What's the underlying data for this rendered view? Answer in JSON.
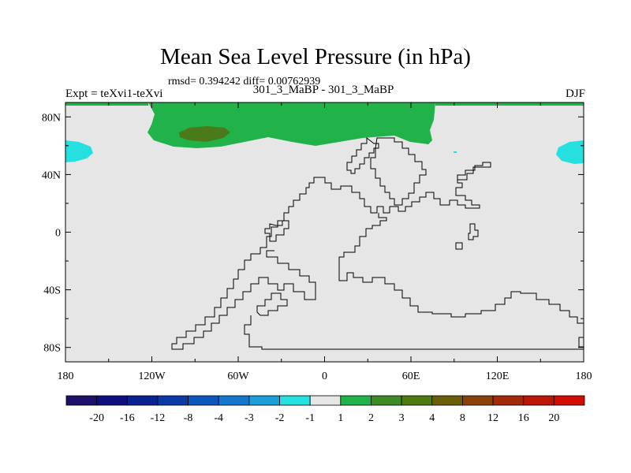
{
  "title": "Mean Sea Level Pressure (in hPa)",
  "stats": "rmsd= 0.394242 diff= 0.00762939",
  "left_string": "Expt = teXvi1-teXvi",
  "center_string": "301_3_MaBP - 301_3_MaBP",
  "right_string": "DJF",
  "axes": {
    "lat_labels": [
      "80N",
      "40N",
      "0",
      "40S",
      "80S"
    ],
    "lon_labels": [
      "180",
      "120W",
      "60W",
      "0",
      "60E",
      "120E",
      "180"
    ]
  },
  "colorbar": {
    "labels": [
      "-20",
      "-16",
      "-12",
      "-8",
      "-4",
      "-3",
      "-2",
      "-1",
      "1",
      "2",
      "3",
      "4",
      "8",
      "12",
      "16",
      "20"
    ],
    "colors": [
      "#1e0f6b",
      "#0e0e7f",
      "#0a2290",
      "#0a3aa6",
      "#0d56be",
      "#1477cc",
      "#1b9dd8",
      "#26e0e0",
      "#e6e6e6",
      "#21b34a",
      "#3e8a25",
      "#4f7a10",
      "#6a5e08",
      "#8a420a",
      "#a32a08",
      "#bb1505",
      "#d10c00"
    ]
  },
  "fill_colors": {
    "background": "#e6e6e6",
    "positive_1_2": "#21b34a",
    "positive_3_4": "#4a7a1a",
    "negative_1_2": "#26e0e0"
  }
}
